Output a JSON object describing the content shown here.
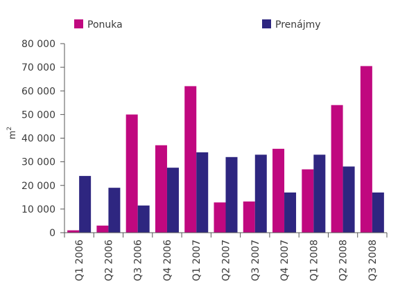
{
  "chart_data": {
    "type": "bar",
    "title": "",
    "xlabel": "",
    "ylabel": "m",
    "ylabel_superscript": "2",
    "ylim": [
      0,
      80000
    ],
    "yticks": [
      0,
      10000,
      20000,
      30000,
      40000,
      50000,
      60000,
      70000,
      80000
    ],
    "ytick_labels": [
      "0",
      "10 000",
      "20 000",
      "30 000",
      "40 000",
      "50 000",
      "60 000",
      "70 000",
      "80 000"
    ],
    "categories": [
      "Q1 2006",
      "Q2 2006",
      "Q3 2006",
      "Q4 2006",
      "Q1 2007",
      "Q2 2007",
      "Q3 2007",
      "Q4 2007",
      "Q1 2008",
      "Q2 2008",
      "Q3 2008"
    ],
    "legend_position": "top",
    "series": [
      {
        "name": "Ponuka",
        "color": "#c0087f",
        "values": [
          1000,
          3000,
          50000,
          37000,
          62000,
          12800,
          13200,
          35500,
          26800,
          54000,
          70500
        ]
      },
      {
        "name": "Prenájmy",
        "color": "#2e2680",
        "values": [
          24000,
          19000,
          11500,
          27500,
          34000,
          32000,
          33000,
          17000,
          33000,
          28000,
          17000
        ]
      }
    ]
  }
}
